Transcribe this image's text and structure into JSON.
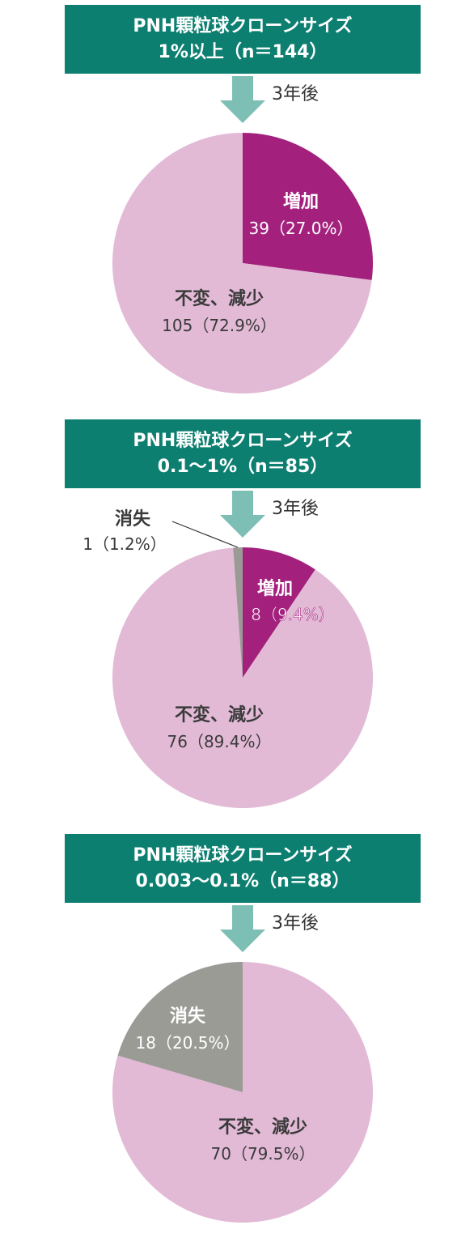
{
  "colors": {
    "header_bg": "#0d7f71",
    "arrow": "#7ebfb5",
    "increase": "#a3217d",
    "unchanged": "#e2bad6",
    "vanished": "#9b9b96"
  },
  "arrow_label": "3年後",
  "chart_data": [
    {
      "type": "pie",
      "title_line1": "PNH顆粒球クローンサイズ",
      "title_line2": "1%以上（n＝144）",
      "slices": [
        {
          "key": "increase",
          "name": "増加",
          "count": 39,
          "percent": 27.0,
          "value_text": "39（27.0%）"
        },
        {
          "key": "unchanged",
          "name": "不変、減少",
          "count": 105,
          "percent": 72.9,
          "value_text": "105（72.9%）"
        }
      ]
    },
    {
      "type": "pie",
      "title_line1": "PNH顆粒球クローンサイズ",
      "title_line2": "0.1〜1%（n＝85）",
      "slices": [
        {
          "key": "increase",
          "name": "増加",
          "count": 8,
          "percent": 9.4,
          "value_text": "8（9.4%）"
        },
        {
          "key": "unchanged",
          "name": "不変、減少",
          "count": 76,
          "percent": 89.4,
          "value_text": "76（89.4%）"
        },
        {
          "key": "vanished",
          "name": "消失",
          "count": 1,
          "percent": 1.2,
          "value_text": "1（1.2%）"
        }
      ]
    },
    {
      "type": "pie",
      "title_line1": "PNH顆粒球クローンサイズ",
      "title_line2": "0.003〜0.1%（n＝88）",
      "slices": [
        {
          "key": "unchanged",
          "name": "不変、減少",
          "count": 70,
          "percent": 79.5,
          "value_text": "70（79.5%）"
        },
        {
          "key": "vanished",
          "name": "消失",
          "count": 18,
          "percent": 20.5,
          "value_text": "18（20.5%）"
        }
      ]
    }
  ]
}
